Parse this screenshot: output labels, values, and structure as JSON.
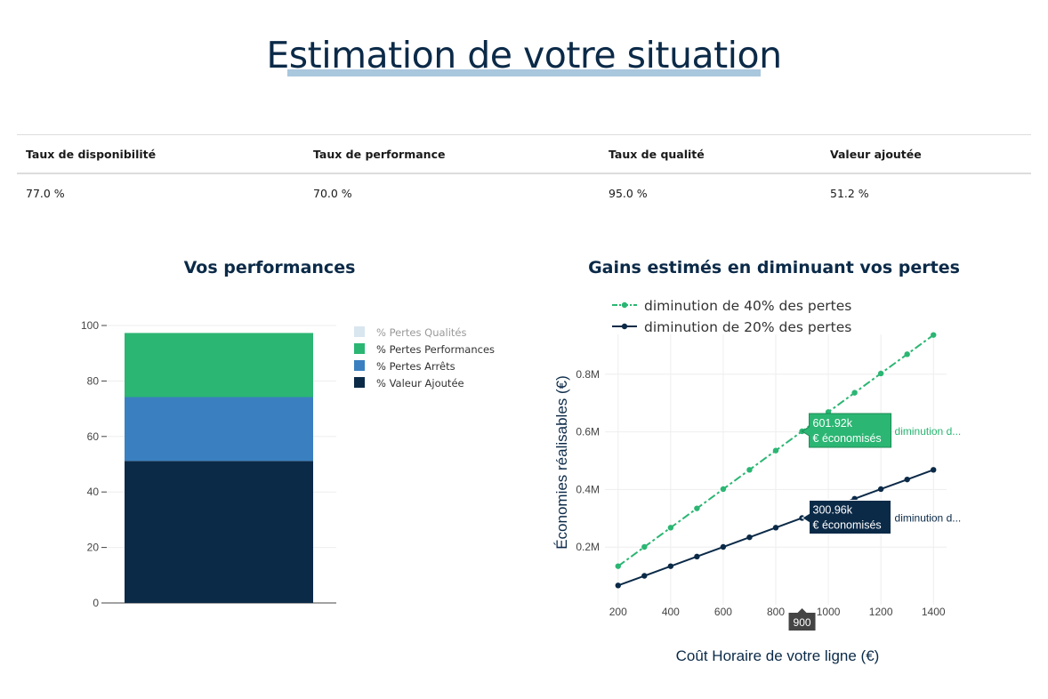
{
  "page": {
    "title": "Estimation de votre situation"
  },
  "metrics": {
    "headers": [
      "Taux de disponibilité",
      "Taux de performance",
      "Taux de qualité",
      "Valeur ajoutée"
    ],
    "values": [
      "77.0 %",
      "70.0 %",
      "95.0 %",
      "51.2 %"
    ]
  },
  "colors": {
    "navy": "#0b2a48",
    "blue": "#3a80c0",
    "green": "#2bb673",
    "lightblue": "#d9e6f0",
    "hover_bg_green": "#2bb673",
    "hover_bg_navy": "#0b2a48"
  },
  "chart_data": [
    {
      "type": "bar",
      "title": "Vos performances",
      "stacked": true,
      "ylim": [
        0,
        100
      ],
      "yticks": [
        "0",
        "20",
        "40",
        "60",
        "80",
        "100"
      ],
      "categories": [
        ""
      ],
      "series": [
        {
          "name": "% Valeur Ajoutée",
          "values": [
            51.2
          ],
          "color": "#0b2a48"
        },
        {
          "name": "% Pertes Arrêts",
          "values": [
            23.0
          ],
          "color": "#3a80c0"
        },
        {
          "name": "% Pertes Performances",
          "values": [
            23.1
          ],
          "color": "#2bb673"
        },
        {
          "name": "% Pertes Qualités",
          "values": [
            0
          ],
          "color": "#d9e6f0",
          "legend_muted": true
        }
      ],
      "legend_order": [
        "% Pertes Qualités",
        "% Pertes Performances",
        "% Pertes Arrêts",
        "% Valeur Ajoutée"
      ],
      "legend_position": "right",
      "grid": true
    },
    {
      "type": "line",
      "title": "Gains estimés en diminuant vos pertes",
      "xlabel": "Coût Horaire de votre ligne (€)",
      "ylabel": "Économies réalisables (€)",
      "x": [
        200,
        300,
        400,
        500,
        600,
        700,
        800,
        900,
        1000,
        1100,
        1200,
        1300,
        1400
      ],
      "xlim": [
        150,
        1450
      ],
      "ylim": [
        0,
        1.0
      ],
      "xticks": [
        "200",
        "400",
        "600",
        "800",
        "1000",
        "1200",
        "1400"
      ],
      "yticks": [
        "0.2M",
        "0.4M",
        "0.6M",
        "0.8M"
      ],
      "series": [
        {
          "name": "diminution de 40% des pertes",
          "color": "#2bb673",
          "dash": "dashdot",
          "values": [
            0.1338,
            0.2006,
            0.2675,
            0.3344,
            0.4013,
            0.4682,
            0.535,
            0.6019,
            0.6688,
            0.7357,
            0.8026,
            0.8694,
            0.9363
          ]
        },
        {
          "name": "diminution de 20% des pertes",
          "color": "#0b2a48",
          "dash": "solid",
          "values": [
            0.0669,
            0.1003,
            0.1338,
            0.1672,
            0.2006,
            0.2341,
            0.2675,
            0.301,
            0.3344,
            0.3678,
            0.4013,
            0.4347,
            0.4682
          ]
        }
      ],
      "legend_position": "top-left",
      "grid": true,
      "hover": {
        "x_label": "900",
        "labels": [
          {
            "value": "601.92k",
            "unit": "€ économisés",
            "series_label": "diminution d..."
          },
          {
            "value": "300.96k",
            "unit": "€ économisés",
            "series_label": "diminution d..."
          }
        ]
      }
    }
  ]
}
